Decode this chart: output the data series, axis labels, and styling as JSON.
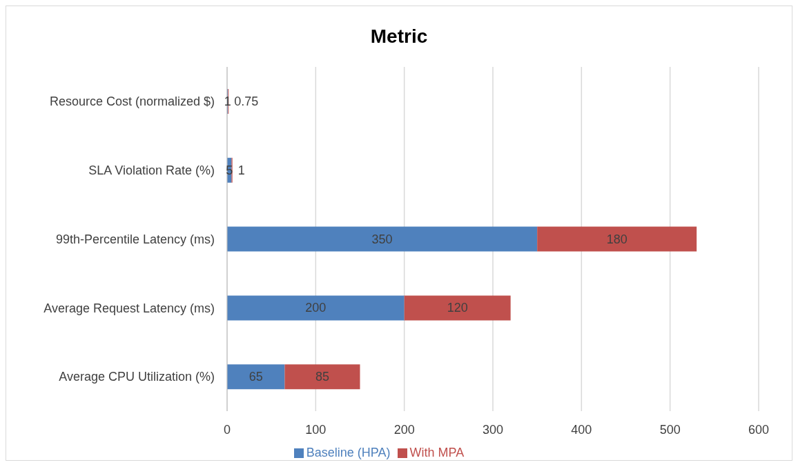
{
  "chart_data": {
    "type": "bar",
    "orientation": "horizontal",
    "stacked": true,
    "title": "Metric",
    "categories": [
      "Resource Cost (normalized $)",
      "SLA Violation Rate (%)",
      "99th-Percentile Latency (ms)",
      "Average Request Latency (ms)",
      "Average CPU Utilization (%)"
    ],
    "series": [
      {
        "name": "Baseline (HPA)",
        "color": "#4f81bd",
        "values": [
          1,
          5,
          350,
          200,
          65
        ]
      },
      {
        "name": "With MPA",
        "color": "#c0504d",
        "values": [
          0.75,
          1,
          180,
          120,
          85
        ]
      }
    ],
    "xlim": [
      0,
      600
    ],
    "xticks": [
      0,
      100,
      200,
      300,
      400,
      500,
      600
    ],
    "grid": "x",
    "legend": "bottom",
    "data_labels": true
  }
}
